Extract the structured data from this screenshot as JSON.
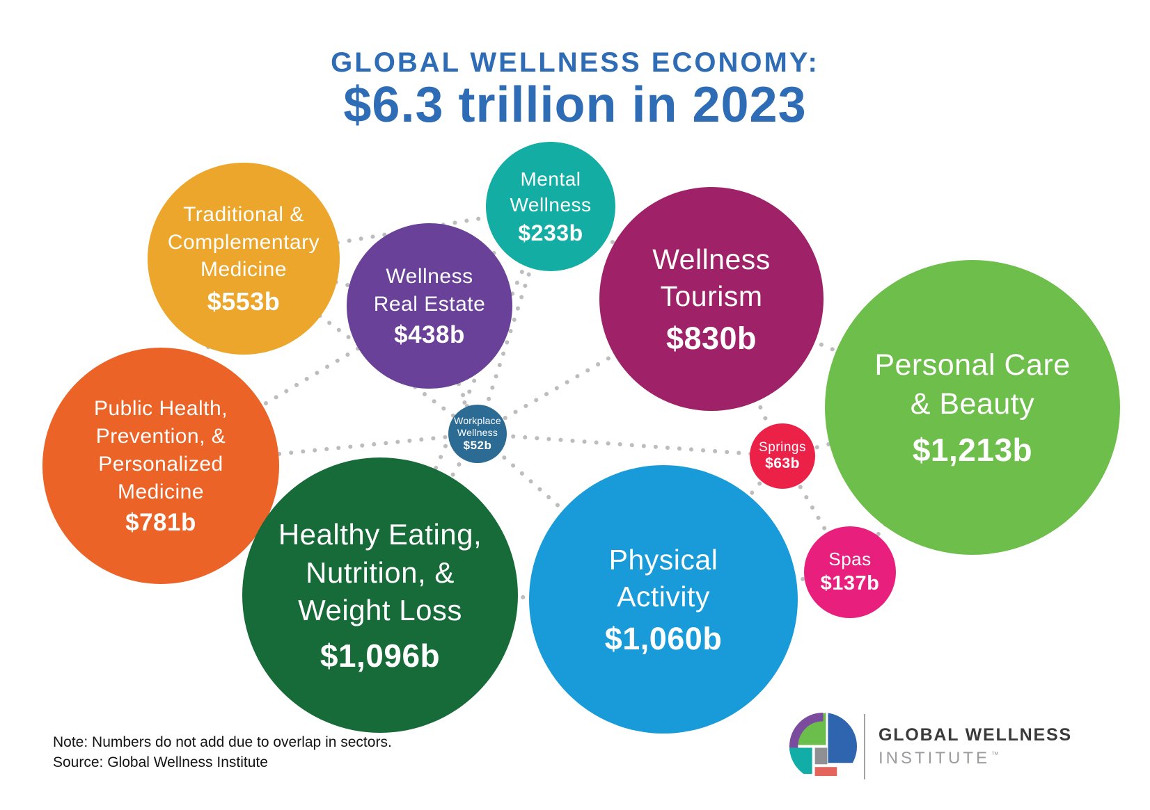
{
  "title": {
    "line1": "GLOBAL WELLNESS ECONOMY:",
    "line2": "$6.3 trillion in 2023",
    "color": "#2e6cb5"
  },
  "bubbles": [
    {
      "id": "traditional",
      "label": "Traditional &\nComplementary\nMedicine",
      "value": "$553b",
      "color": "#eba62b"
    },
    {
      "id": "real_estate",
      "label": "Wellness\nReal Estate",
      "value": "$438b",
      "color": "#6a4199"
    },
    {
      "id": "mental",
      "label": "Mental\nWellness",
      "value": "$233b",
      "color": "#13ada3"
    },
    {
      "id": "tourism",
      "label": "Wellness\nTourism",
      "value": "$830b",
      "color": "#9f2167"
    },
    {
      "id": "personal_care",
      "label": "Personal Care\n& Beauty",
      "value": "$1,213b",
      "color": "#6ebe4b"
    },
    {
      "id": "public_health",
      "label": "Public Health,\nPrevention, &\nPersonalized\nMedicine",
      "value": "$781b",
      "color": "#eb6327"
    },
    {
      "id": "workplace",
      "label": "Workplace\nWellness",
      "value": "$52b",
      "color": "#2b6b94"
    },
    {
      "id": "healthy_eating",
      "label": "Healthy Eating,\nNutrition, &\nWeight Loss",
      "value": "$1,096b",
      "color": "#176b39"
    },
    {
      "id": "physical",
      "label": "Physical\nActivity",
      "value": "$1,060b",
      "color": "#189bd8"
    },
    {
      "id": "springs",
      "label": "Springs",
      "value": "$63b",
      "color": "#eb2148"
    },
    {
      "id": "spas",
      "label": "Spas",
      "value": "$137b",
      "color": "#e81f7d"
    }
  ],
  "connections": [
    [
      "traditional",
      "mental"
    ],
    [
      "traditional",
      "real_estate"
    ],
    [
      "traditional",
      "public_health"
    ],
    [
      "traditional",
      "workplace"
    ],
    [
      "real_estate",
      "mental"
    ],
    [
      "real_estate",
      "public_health"
    ],
    [
      "real_estate",
      "workplace"
    ],
    [
      "mental",
      "workplace"
    ],
    [
      "mental",
      "tourism"
    ],
    [
      "mental",
      "healthy_eating"
    ],
    [
      "tourism",
      "workplace"
    ],
    [
      "tourism",
      "springs"
    ],
    [
      "tourism",
      "personal_care"
    ],
    [
      "public_health",
      "workplace"
    ],
    [
      "public_health",
      "healthy_eating"
    ],
    [
      "workplace",
      "healthy_eating"
    ],
    [
      "workplace",
      "physical"
    ],
    [
      "workplace",
      "springs"
    ],
    [
      "springs",
      "spas"
    ],
    [
      "springs",
      "physical"
    ],
    [
      "springs",
      "personal_care"
    ],
    [
      "spas",
      "personal_care"
    ],
    [
      "spas",
      "physical"
    ],
    [
      "healthy_eating",
      "physical"
    ]
  ],
  "connector_color": "#bdbdbd",
  "footer": {
    "note_line1": "Note: Numbers do not add due to overlap in sectors.",
    "note_line2": "Source: Global Wellness Institute"
  },
  "logo": {
    "line1": "GLOBAL WELLNESS",
    "line2": "INSTITUTE",
    "tm": "™",
    "text_color": "#3a3a3c",
    "subtext_color": "#9b9ba0",
    "mark_colors": {
      "purple": "#7b4b9e",
      "green": "#6cbe4c",
      "blue": "#2f64ae",
      "teal": "#11ada6",
      "gray": "#8f9093",
      "coral": "#e4635a"
    }
  },
  "chart_data": {
    "type": "bubble",
    "title": "GLOBAL WELLNESS ECONOMY: $6.3 trillion in 2023",
    "total": "$6.3 trillion",
    "year": 2023,
    "unit": "USD billions",
    "note": "Note: Numbers do not add due to overlap in sectors.",
    "source": "Source: Global Wellness Institute",
    "points": [
      {
        "label": "Traditional & Complementary Medicine",
        "value_b": 553
      },
      {
        "label": "Wellness Real Estate",
        "value_b": 438
      },
      {
        "label": "Mental Wellness",
        "value_b": 233
      },
      {
        "label": "Wellness Tourism",
        "value_b": 830
      },
      {
        "label": "Personal Care & Beauty",
        "value_b": 1213
      },
      {
        "label": "Public Health, Prevention, & Personalized Medicine",
        "value_b": 781
      },
      {
        "label": "Workplace Wellness",
        "value_b": 52
      },
      {
        "label": "Healthy Eating, Nutrition, & Weight Loss",
        "value_b": 1096
      },
      {
        "label": "Physical Activity",
        "value_b": 1060
      },
      {
        "label": "Springs",
        "value_b": 63
      },
      {
        "label": "Spas",
        "value_b": 137
      }
    ]
  }
}
